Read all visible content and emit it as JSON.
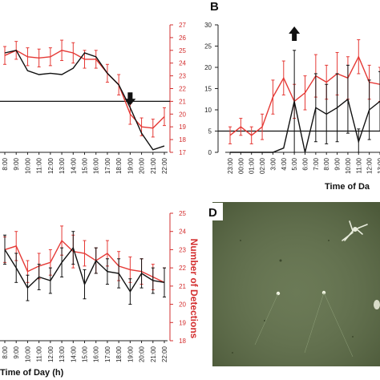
{
  "panels": {
    "A": {
      "x_ticks": [
        "8:00",
        "9:00",
        "10:00",
        "11:00",
        "12:00",
        "13:00",
        "14:00",
        "15:00",
        "16:00",
        "17:00",
        "18:00",
        "19:00",
        "20:00",
        "21:00",
        "22:00"
      ],
      "right_ticks": [
        "17",
        "18",
        "19",
        "20",
        "21",
        "22",
        "23",
        "24",
        "25",
        "26",
        "27"
      ],
      "colors": {
        "red": "#e53935",
        "black": "#111111"
      }
    },
    "B": {
      "letter": "B",
      "x_ticks": [
        "23:00",
        "00:00",
        "01:00",
        "02:00",
        "3:00",
        "4:00",
        "5:00",
        "6:00",
        "7:00",
        "8:00",
        "9:00",
        "10:00",
        "11:00",
        "12:00",
        "13:00"
      ],
      "left_ticks": [
        "0",
        "5",
        "10",
        "15",
        "20",
        "25",
        "30"
      ],
      "x_title": "Time of Da"
    },
    "C": {
      "x_ticks": [
        "8:00",
        "9:00",
        "10:00",
        "11:00",
        "12:00",
        "13:00",
        "14:00",
        "15:00",
        "16:00",
        "17:00",
        "18:00",
        "19:00",
        "20:00",
        "21:00",
        "22:00"
      ],
      "right_ticks": [
        "18",
        "19",
        "20",
        "21",
        "22",
        "23",
        "24",
        "25"
      ],
      "right_title": "Number of Detections",
      "x_title": "Time of Day (h)"
    },
    "D": {
      "letter": "D",
      "photo_bg": "#5e6e47"
    }
  },
  "chart_data": [
    {
      "panel": "A",
      "type": "line",
      "x": [
        "8:00",
        "9:00",
        "10:00",
        "11:00",
        "12:00",
        "13:00",
        "14:00",
        "15:00",
        "16:00",
        "17:00",
        "18:00",
        "19:00",
        "20:00",
        "21:00",
        "22:00"
      ],
      "right_axis": {
        "ylim": [
          17,
          27
        ],
        "ticks": [
          17,
          18,
          19,
          20,
          21,
          22,
          23,
          24,
          25,
          26,
          27
        ]
      },
      "series": [
        {
          "color": "#e53935",
          "values": [
            24.6,
            25.0,
            24.5,
            24.4,
            24.5,
            25.0,
            24.8,
            24.3,
            24.3,
            23.2,
            22.3,
            20.0,
            19.0,
            18.9,
            19.8
          ],
          "err": [
            0.7,
            0.7,
            0.7,
            0.7,
            0.7,
            0.8,
            0.8,
            0.7,
            0.7,
            0.7,
            0.8,
            0.8,
            0.7,
            0.7,
            0.7
          ]
        },
        {
          "color": "#111111",
          "values": [
            24.8,
            25.0,
            23.4,
            23.1,
            23.2,
            23.1,
            23.6,
            24.8,
            24.5,
            23.2,
            22.3,
            20.5,
            18.5,
            17.2,
            17.5
          ],
          "err": [
            0,
            0,
            0,
            0,
            0,
            0,
            0,
            0,
            0,
            0,
            0,
            0,
            0,
            0,
            0
          ]
        }
      ],
      "hline": 21,
      "arrow_at": "19:00"
    },
    {
      "panel": "B",
      "type": "line",
      "x": [
        "23:00",
        "00:00",
        "01:00",
        "02:00",
        "3:00",
        "4:00",
        "5:00",
        "6:00",
        "7:00",
        "8:00",
        "9:00",
        "10:00",
        "11:00",
        "12:00",
        "13:00"
      ],
      "left_axis": {
        "ylim": [
          0,
          30
        ],
        "ticks": [
          0,
          5,
          10,
          15,
          20,
          25,
          30
        ]
      },
      "series": [
        {
          "color": "#e53935",
          "values": [
            4,
            6,
            4,
            6,
            13,
            17.5,
            12,
            14,
            18,
            16.5,
            18.5,
            17.5,
            22.5,
            16.5,
            16
          ],
          "err": [
            2,
            2,
            2,
            3,
            4,
            4,
            4,
            4,
            5,
            4,
            5,
            5,
            4,
            4,
            4
          ]
        },
        {
          "color": "#111111",
          "values": [
            0,
            0,
            0,
            0,
            0,
            1,
            12,
            0,
            10.5,
            9,
            10.5,
            12.5,
            2.5,
            10,
            12
          ],
          "err": [
            0,
            0,
            0,
            0,
            0,
            0,
            12,
            0,
            8,
            7,
            8,
            8,
            3,
            7,
            7
          ]
        }
      ],
      "hline": 5,
      "arrow_at": "5:00",
      "xlabel": "Time of Da"
    },
    {
      "panel": "C",
      "type": "line",
      "x": [
        "8:00",
        "9:00",
        "10:00",
        "11:00",
        "12:00",
        "13:00",
        "14:00",
        "15:00",
        "16:00",
        "17:00",
        "18:00",
        "19:00",
        "20:00",
        "21:00",
        "22:00"
      ],
      "right_axis": {
        "ylim": [
          18,
          25
        ],
        "ticks": [
          18,
          19,
          20,
          21,
          22,
          23,
          24,
          25
        ],
        "label": "Number of Detections"
      },
      "series": [
        {
          "color": "#e53935",
          "values": [
            23.0,
            23.2,
            21.8,
            22.1,
            22.3,
            23.5,
            22.9,
            22.8,
            22.4,
            22.8,
            22.1,
            21.9,
            21.8,
            21.5,
            21.2
          ],
          "err": [
            0.7,
            0.8,
            0.6,
            0.7,
            0.7,
            0.8,
            0.9,
            0.7,
            0.7,
            0.7,
            0.8,
            0.7,
            0.7,
            0.7,
            0.8
          ]
        },
        {
          "color": "#111111",
          "values": [
            23.0,
            22.0,
            20.9,
            21.5,
            21.3,
            22.3,
            23.1,
            21.1,
            22.4,
            21.8,
            21.7,
            20.7,
            21.7,
            21.3,
            21.2
          ],
          "err": [
            0.8,
            0.8,
            0.7,
            0.7,
            0.7,
            0.8,
            0.9,
            0.8,
            0.7,
            0.7,
            0.8,
            0.7,
            0.8,
            0.7,
            0.8
          ]
        }
      ],
      "xlabel": "Time of Day (h)"
    }
  ]
}
